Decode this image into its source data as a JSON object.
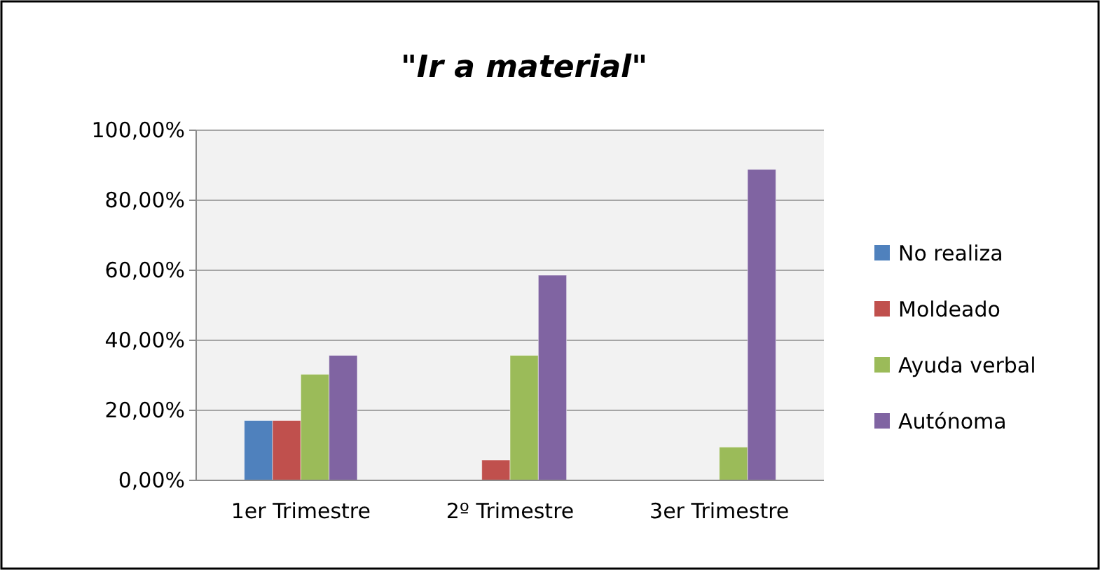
{
  "chart_data": {
    "type": "bar",
    "title": "\"Ir a material\"",
    "categories": [
      "1er Trimestre",
      "2º Trimestre",
      "3er Trimestre"
    ],
    "series": [
      {
        "name": "No realiza",
        "color": "#4f81bd",
        "values": [
          17.1,
          0,
          0
        ]
      },
      {
        "name": "Moldeado",
        "color": "#c0504d",
        "values": [
          17.1,
          5.8,
          0
        ]
      },
      {
        "name": "Ayuda verbal",
        "color": "#9bbb59",
        "values": [
          30.3,
          35.7,
          9.5
        ]
      },
      {
        "name": "Autónoma",
        "color": "#8064a2",
        "values": [
          35.7,
          58.6,
          88.8
        ]
      }
    ],
    "ylim": [
      0,
      100
    ],
    "yticks": [
      {
        "value": 0,
        "label": "0,00%"
      },
      {
        "value": 20,
        "label": "20,00%"
      },
      {
        "value": 40,
        "label": "40,00%"
      },
      {
        "value": 60,
        "label": "60,00%"
      },
      {
        "value": 80,
        "label": "80,00%"
      },
      {
        "value": 100,
        "label": "100,00%"
      }
    ],
    "grid": "y",
    "legend": "right"
  }
}
